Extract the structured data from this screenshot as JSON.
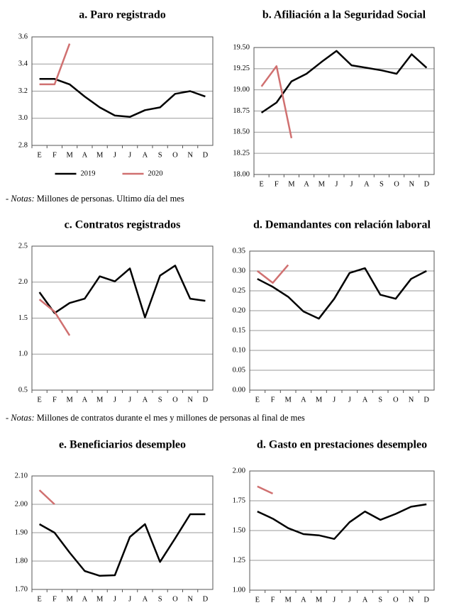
{
  "chart_data": [
    {
      "type": "line",
      "title": "a. Paro registrado",
      "categories": [
        "E",
        "F",
        "M",
        "A",
        "M",
        "J",
        "J",
        "A",
        "S",
        "O",
        "N",
        "D"
      ],
      "series": [
        {
          "name": "2019",
          "color": "#000000",
          "values": [
            3.29,
            3.29,
            3.25,
            3.16,
            3.08,
            3.02,
            3.01,
            3.06,
            3.08,
            3.18,
            3.2,
            3.16
          ]
        },
        {
          "name": "2020",
          "color": "#d07070",
          "values": [
            3.25,
            3.25,
            3.55,
            null,
            null,
            null,
            null,
            null,
            null,
            null,
            null,
            null
          ]
        }
      ],
      "ylim": [
        2.8,
        3.6
      ],
      "yticks": [
        2.8,
        {
          "value": 3,
          "label": "3.0"
        },
        3.2,
        3.4,
        3.6
      ],
      "grid": true,
      "legend": "bottom"
    },
    {
      "type": "line",
      "title": "b. Afiliación a la Seguridad Social",
      "categories": [
        "E",
        "F",
        "M",
        "A",
        "M",
        "J",
        "J",
        "A",
        "S",
        "O",
        "N",
        "D"
      ],
      "series": [
        {
          "color": "#000000",
          "values": [
            18.73,
            18.85,
            19.1,
            19.19,
            19.33,
            19.46,
            19.29,
            19.26,
            19.23,
            19.19,
            19.42,
            19.26
          ]
        },
        {
          "color": "#d07070",
          "values": [
            19.04,
            19.28,
            18.43,
            null,
            null,
            null,
            null,
            null,
            null,
            null,
            null,
            null
          ]
        }
      ],
      "ylim": [
        18,
        19.5
      ],
      "yticks": [
        {
          "value": 18,
          "label": "18.00"
        },
        {
          "value": 18.25,
          "label": "18.25"
        },
        {
          "value": 18.5,
          "label": "18.50"
        },
        {
          "value": 18.75,
          "label": "18.75"
        },
        {
          "value": 19,
          "label": "19.00"
        },
        {
          "value": 19.25,
          "label": "19.25"
        },
        {
          "value": 19.5,
          "label": "19.50"
        }
      ],
      "grid": true
    },
    {
      "type": "line",
      "title": "c. Contratos registrados",
      "categories": [
        "E",
        "F",
        "M",
        "A",
        "M",
        "J",
        "J",
        "A",
        "S",
        "O",
        "N",
        "D"
      ],
      "series": [
        {
          "color": "#000000",
          "values": [
            1.86,
            1.57,
            1.71,
            1.77,
            2.08,
            2.01,
            2.19,
            1.51,
            2.09,
            2.23,
            1.77,
            1.74
          ]
        },
        {
          "color": "#d07070",
          "values": [
            1.76,
            1.59,
            1.26,
            null,
            null,
            null,
            null,
            null,
            null,
            null,
            null,
            null
          ]
        }
      ],
      "ylim": [
        0.5,
        2.5
      ],
      "yticks": [
        0.5,
        {
          "value": 1,
          "label": "1.0"
        },
        1.5,
        {
          "value": 2,
          "label": "2.0"
        },
        2.5
      ],
      "grid": true
    },
    {
      "type": "line",
      "title": "d. Demandantes con relación laboral",
      "categories": [
        "E",
        "F",
        "M",
        "A",
        "M",
        "J",
        "J",
        "A",
        "S",
        "O",
        "N",
        "D"
      ],
      "series": [
        {
          "color": "#000000",
          "values": [
            0.28,
            0.26,
            0.235,
            0.198,
            0.18,
            0.23,
            0.295,
            0.307,
            0.24,
            0.23,
            0.28,
            0.3
          ]
        },
        {
          "color": "#d07070",
          "values": [
            0.3,
            0.27,
            0.315,
            null,
            null,
            null,
            null,
            null,
            null,
            null,
            null,
            null
          ]
        }
      ],
      "ylim": [
        0,
        0.35
      ],
      "yticks": [
        {
          "value": 0,
          "label": "0.00"
        },
        {
          "value": 0.05,
          "label": "0.05"
        },
        {
          "value": 0.1,
          "label": "0.10"
        },
        {
          "value": 0.15,
          "label": "0.15"
        },
        {
          "value": 0.2,
          "label": "0.20"
        },
        {
          "value": 0.25,
          "label": "0.25"
        },
        {
          "value": 0.3,
          "label": "0.30"
        },
        {
          "value": 0.35,
          "label": "0.35"
        }
      ],
      "grid": true
    },
    {
      "type": "line",
      "title": "e. Beneficiarios desempleo",
      "categories": [
        "E",
        "F",
        "M",
        "A",
        "M",
        "J",
        "J",
        "A",
        "S",
        "O",
        "N",
        "D"
      ],
      "series": [
        {
          "color": "#000000",
          "values": [
            1.93,
            1.9,
            1.83,
            1.765,
            1.748,
            1.75,
            1.885,
            1.93,
            1.797,
            1.88,
            1.965,
            1.965
          ]
        },
        {
          "color": "#d07070",
          "values": [
            2.05,
            2.0,
            null,
            null,
            null,
            null,
            null,
            null,
            null,
            null,
            null,
            null
          ]
        }
      ],
      "ylim": [
        1.7,
        2.1
      ],
      "yticks": [
        {
          "value": 1.7,
          "label": "1.70"
        },
        {
          "value": 1.8,
          "label": "1.80"
        },
        {
          "value": 1.9,
          "label": "1.90"
        },
        {
          "value": 2,
          "label": "2.00"
        },
        {
          "value": 2.1,
          "label": "2.10"
        }
      ],
      "grid": true
    },
    {
      "type": "line",
      "title": "d. Gasto en prestaciones desempleo",
      "categories": [
        "E",
        "F",
        "M",
        "A",
        "M",
        "J",
        "J",
        "A",
        "S",
        "O",
        "N",
        "D"
      ],
      "series": [
        {
          "color": "#000000",
          "values": [
            1.66,
            1.6,
            1.52,
            1.47,
            1.46,
            1.43,
            1.57,
            1.66,
            1.59,
            1.64,
            1.7,
            1.72
          ]
        },
        {
          "color": "#d07070",
          "values": [
            1.87,
            1.81,
            null,
            null,
            null,
            null,
            null,
            null,
            null,
            null,
            null,
            null
          ]
        }
      ],
      "ylim": [
        1,
        2
      ],
      "yticks": [
        {
          "value": 1,
          "label": "1.00"
        },
        {
          "value": 1.25,
          "label": "1.25"
        },
        {
          "value": 1.5,
          "label": "1.50"
        },
        {
          "value": 1.75,
          "label": "1.75"
        },
        {
          "value": 2,
          "label": "2.00"
        }
      ],
      "grid": true
    }
  ],
  "notes": [
    {
      "dash": "-",
      "label": "Notas:",
      "text": "Millones de personas. Ultimo día del mes"
    },
    {
      "dash": "-",
      "label": "Notas:",
      "text": "Millones de contratos durante el mes y millones de personas al final de mes"
    }
  ]
}
